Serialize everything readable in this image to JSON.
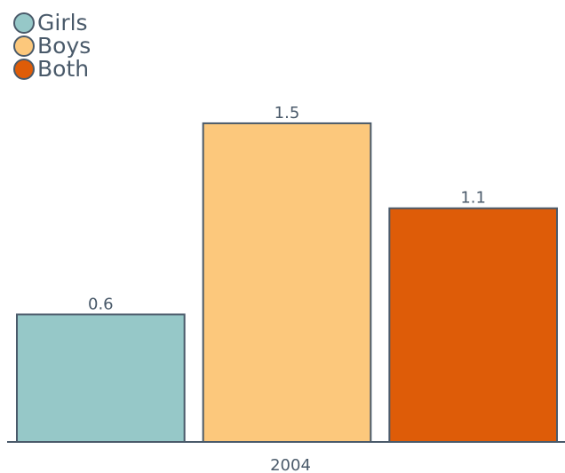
{
  "chart_data": {
    "type": "bar",
    "categories": [
      "2004"
    ],
    "series": [
      {
        "name": "Girls",
        "color": "#96c8c8",
        "values": [
          0.6
        ]
      },
      {
        "name": "Boys",
        "color": "#fcc87c",
        "values": [
          1.5
        ]
      },
      {
        "name": "Both",
        "color": "#de5c08",
        "values": [
          1.1
        ]
      }
    ],
    "ylim": [
      0,
      1.6
    ],
    "legend": "top-left"
  }
}
